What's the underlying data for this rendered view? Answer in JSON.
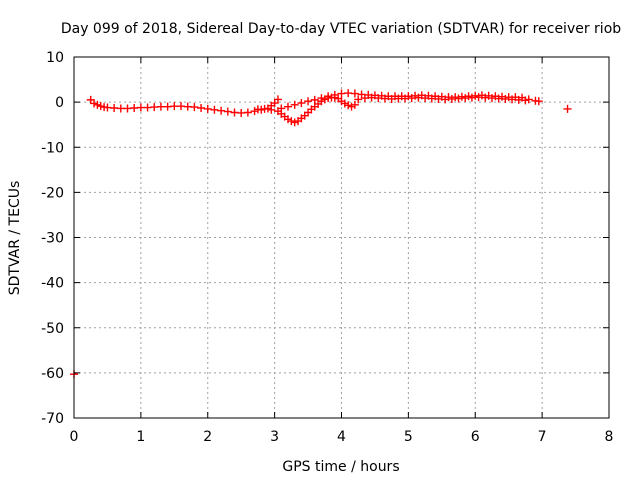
{
  "chart_data": {
    "type": "scatter",
    "title": "Day 099 of 2018, Sidereal Day-to-day VTEC variation (SDTVAR) for receiver riob",
    "xlabel": "GPS time / hours",
    "ylabel": "SDTVAR / TECUs",
    "xlim": [
      0,
      8
    ],
    "ylim": [
      -70,
      10
    ],
    "x_ticks": [
      0,
      1,
      2,
      3,
      4,
      5,
      6,
      7,
      8
    ],
    "y_ticks": [
      -70,
      -60,
      -50,
      -40,
      -30,
      -20,
      -10,
      0,
      10
    ],
    "grid": true,
    "legend": "none",
    "marker": "plus",
    "series_color": "#ff0000",
    "series": [
      {
        "points": [
          [
            0.25,
            0.5
          ],
          [
            0.3,
            -0.3
          ],
          [
            0.35,
            -0.6
          ],
          [
            0.4,
            -0.9
          ],
          [
            0.45,
            -1.1
          ],
          [
            0.5,
            -1.2
          ],
          [
            0.6,
            -1.3
          ],
          [
            0.7,
            -1.4
          ],
          [
            0.8,
            -1.4
          ],
          [
            0.9,
            -1.3
          ],
          [
            1.0,
            -1.2
          ],
          [
            1.1,
            -1.2
          ],
          [
            1.2,
            -1.1
          ],
          [
            1.3,
            -1.0
          ],
          [
            1.4,
            -1.0
          ],
          [
            1.5,
            -0.9
          ],
          [
            1.6,
            -0.9
          ],
          [
            1.7,
            -1.0
          ],
          [
            1.8,
            -1.1
          ],
          [
            1.9,
            -1.3
          ],
          [
            2.0,
            -1.5
          ],
          [
            2.1,
            -1.7
          ],
          [
            2.2,
            -1.9
          ],
          [
            2.3,
            -2.1
          ],
          [
            2.4,
            -2.3
          ],
          [
            2.5,
            -2.4
          ],
          [
            2.6,
            -2.3
          ],
          [
            2.7,
            -2.0
          ],
          [
            2.8,
            -1.7
          ],
          [
            2.9,
            -1.4
          ],
          [
            2.95,
            -0.8
          ],
          [
            3.0,
            -0.2
          ],
          [
            3.05,
            0.6
          ],
          [
            2.75,
            -1.6
          ],
          [
            2.85,
            -1.5
          ],
          [
            2.95,
            -1.7
          ],
          [
            3.05,
            -2.0
          ],
          [
            3.1,
            -2.6
          ],
          [
            3.15,
            -3.2
          ],
          [
            3.2,
            -3.8
          ],
          [
            3.25,
            -4.2
          ],
          [
            3.3,
            -4.5
          ],
          [
            3.35,
            -4.2
          ],
          [
            3.4,
            -3.6
          ],
          [
            3.45,
            -3.0
          ],
          [
            3.5,
            -2.3
          ],
          [
            3.55,
            -1.6
          ],
          [
            3.6,
            -1.0
          ],
          [
            3.65,
            -0.4
          ],
          [
            3.7,
            0.2
          ],
          [
            3.75,
            0.6
          ],
          [
            3.8,
            0.9
          ],
          [
            3.85,
            1.0
          ],
          [
            3.9,
            1.0
          ],
          [
            3.95,
            0.8
          ],
          [
            4.0,
            0.2
          ],
          [
            4.05,
            -0.3
          ],
          [
            4.1,
            -0.7
          ],
          [
            4.15,
            -1.0
          ],
          [
            4.2,
            -0.6
          ],
          [
            3.1,
            -1.4
          ],
          [
            3.2,
            -1.0
          ],
          [
            3.3,
            -0.6
          ],
          [
            3.4,
            -0.2
          ],
          [
            3.5,
            0.2
          ],
          [
            3.6,
            0.5
          ],
          [
            3.7,
            0.9
          ],
          [
            3.8,
            1.3
          ],
          [
            3.9,
            1.6
          ],
          [
            4.0,
            1.9
          ],
          [
            4.1,
            2.0
          ],
          [
            4.2,
            1.9
          ],
          [
            4.3,
            1.7
          ],
          [
            4.4,
            1.6
          ],
          [
            4.5,
            1.5
          ],
          [
            4.6,
            1.4
          ],
          [
            4.7,
            1.3
          ],
          [
            4.8,
            1.3
          ],
          [
            4.9,
            1.3
          ],
          [
            5.0,
            1.3
          ],
          [
            5.1,
            1.4
          ],
          [
            5.2,
            1.5
          ],
          [
            5.3,
            1.4
          ],
          [
            5.4,
            1.3
          ],
          [
            5.5,
            1.2
          ],
          [
            5.6,
            1.1
          ],
          [
            5.7,
            1.1
          ],
          [
            5.8,
            1.2
          ],
          [
            5.9,
            1.3
          ],
          [
            6.0,
            1.4
          ],
          [
            6.1,
            1.5
          ],
          [
            6.2,
            1.4
          ],
          [
            6.3,
            1.3
          ],
          [
            6.4,
            1.2
          ],
          [
            6.5,
            1.1
          ],
          [
            6.6,
            1.1
          ],
          [
            6.7,
            1.0
          ],
          [
            6.8,
            0.6
          ],
          [
            6.9,
            0.3
          ],
          [
            6.95,
            0.2
          ],
          [
            4.25,
            0.6
          ],
          [
            4.35,
            0.9
          ],
          [
            4.45,
            1.0
          ],
          [
            4.55,
            0.9
          ],
          [
            4.65,
            0.8
          ],
          [
            4.75,
            0.7
          ],
          [
            4.85,
            0.8
          ],
          [
            4.95,
            0.8
          ],
          [
            5.05,
            0.9
          ],
          [
            5.15,
            1.0
          ],
          [
            5.25,
            0.9
          ],
          [
            5.35,
            0.8
          ],
          [
            5.45,
            0.7
          ],
          [
            5.55,
            0.6
          ],
          [
            5.65,
            0.7
          ],
          [
            5.75,
            0.8
          ],
          [
            5.85,
            0.9
          ],
          [
            5.95,
            1.0
          ],
          [
            6.05,
            1.1
          ],
          [
            6.15,
            1.0
          ],
          [
            6.25,
            0.9
          ],
          [
            6.35,
            0.8
          ],
          [
            6.45,
            0.7
          ],
          [
            6.55,
            0.6
          ],
          [
            6.65,
            0.5
          ],
          [
            6.75,
            0.4
          ],
          [
            7.38,
            -1.5
          ],
          [
            0.0,
            -60.3
          ]
        ]
      }
    ]
  }
}
